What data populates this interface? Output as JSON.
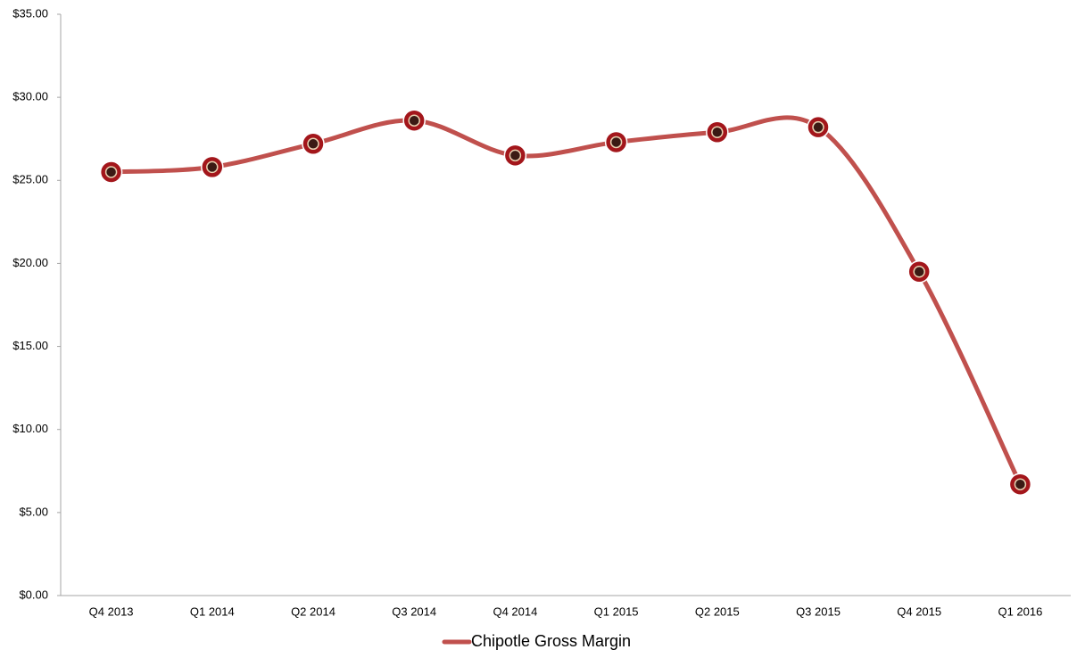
{
  "chart_data": {
    "type": "line",
    "categories": [
      "Q4 2013",
      "Q1 2014",
      "Q2 2014",
      "Q3 2014",
      "Q4 2014",
      "Q1 2015",
      "Q2 2015",
      "Q3 2015",
      "Q4 2015",
      "Q1 2016"
    ],
    "series": [
      {
        "name": "Chipotle Gross Margin",
        "color": "#c0504d",
        "marker_color": "#a3161b",
        "values": [
          25.5,
          25.8,
          27.2,
          28.6,
          26.5,
          27.3,
          27.9,
          28.2,
          19.5,
          6.7
        ]
      }
    ],
    "ylim": [
      0,
      35
    ],
    "yticks": [
      {
        "value": 0,
        "label": "$0.00"
      },
      {
        "value": 5,
        "label": "$5.00"
      },
      {
        "value": 10,
        "label": "$10.00"
      },
      {
        "value": 15,
        "label": "$15.00"
      },
      {
        "value": 20,
        "label": "$20.00"
      },
      {
        "value": 25,
        "label": "$25.00"
      },
      {
        "value": 30,
        "label": "$30.00"
      },
      {
        "value": 35,
        "label": "$35.00"
      }
    ],
    "grid": false,
    "smooth": true,
    "legend": "bottom"
  }
}
